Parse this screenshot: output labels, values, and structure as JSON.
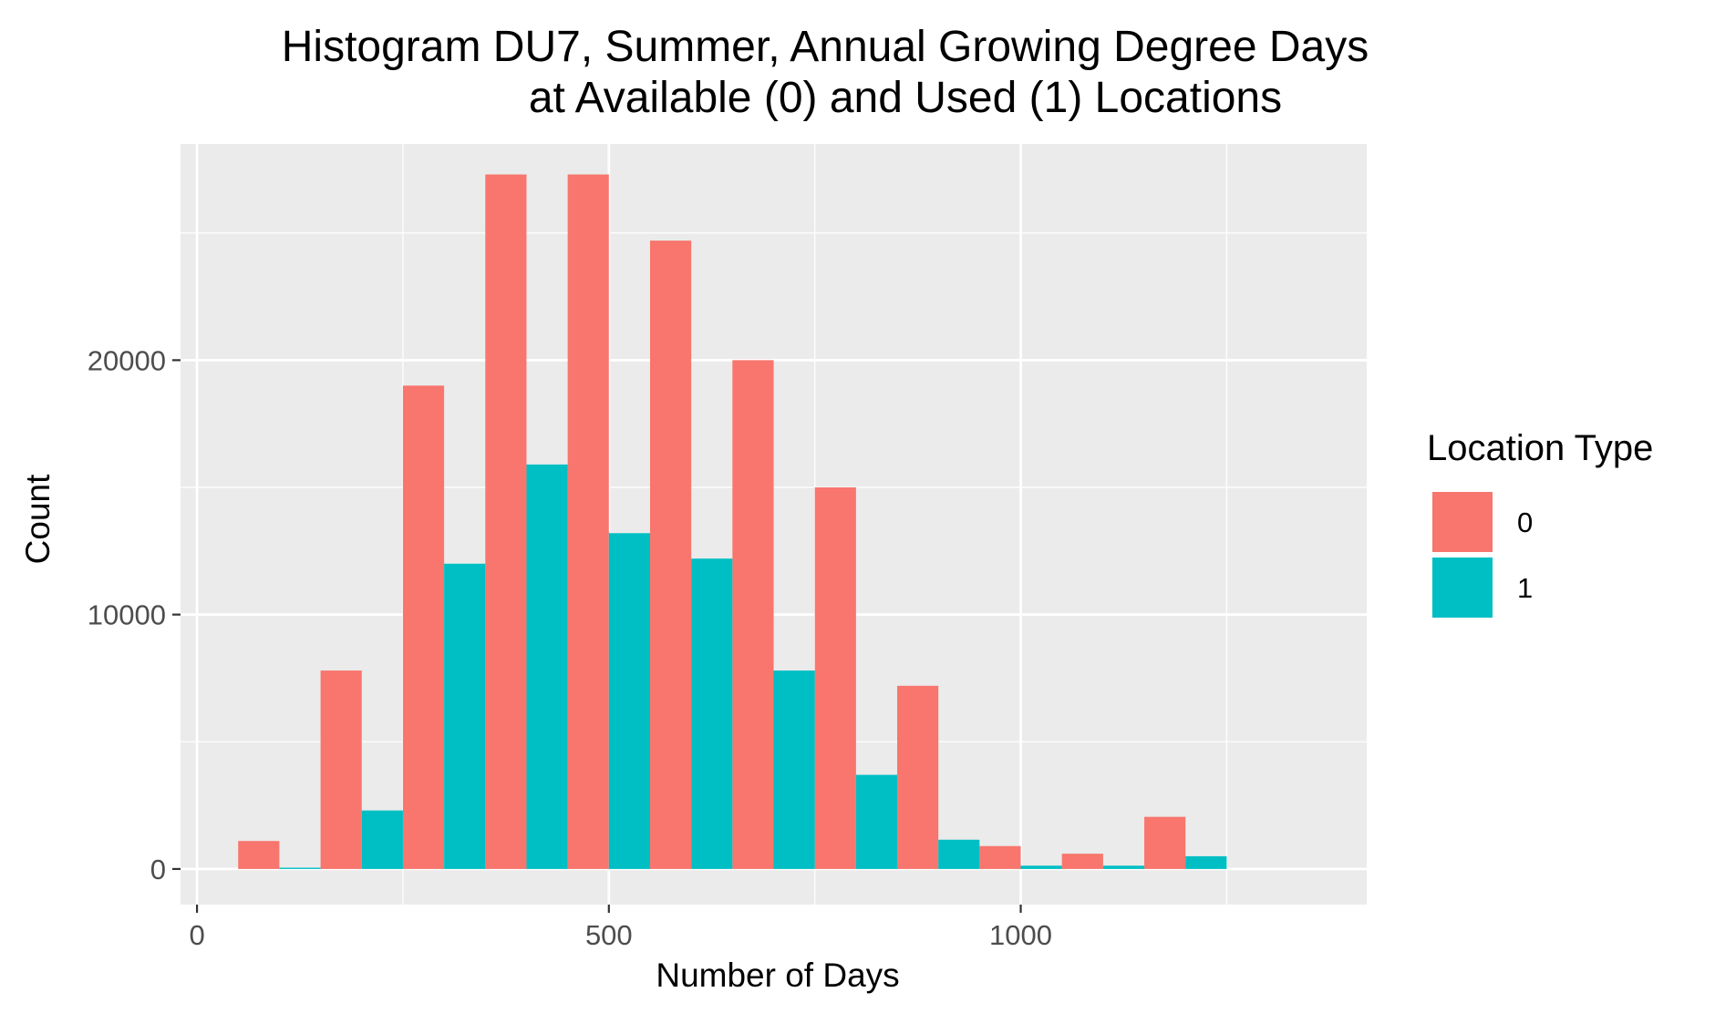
{
  "chart_data": {
    "type": "bar",
    "title_lines": [
      "Histogram DU7, Summer, Annual Growing Degree Days",
      "at Available (0) and Used (1) Locations"
    ],
    "xlabel": "Number of Days",
    "ylabel": "Count",
    "xlim": [
      -20,
      1420
    ],
    "ylim": [
      -1400,
      28500
    ],
    "x_ticks": [
      0,
      500,
      1000
    ],
    "x_tick_labels": [
      "0",
      "500",
      "1000"
    ],
    "y_ticks": [
      0,
      10000,
      20000
    ],
    "y_tick_labels": [
      "0",
      "10000",
      "20000"
    ],
    "x_minor_grid": [
      250,
      750,
      1250
    ],
    "y_minor_grid": [
      5000,
      15000,
      25000
    ],
    "grid": true,
    "bin_width": 100,
    "bin_starts": [
      50,
      150,
      250,
      350,
      450,
      550,
      650,
      750,
      850,
      950,
      1050,
      1150
    ],
    "series": [
      {
        "name": "0",
        "color": "#F8766D",
        "values": [
          1100,
          7800,
          19000,
          27300,
          27300,
          24700,
          20000,
          15000,
          7200,
          900,
          600,
          2050
        ]
      },
      {
        "name": "1",
        "color": "#00BFC4",
        "values": [
          50,
          2300,
          12000,
          15900,
          13200,
          12200,
          7800,
          3700,
          1150,
          130,
          130,
          500
        ]
      }
    ],
    "legend": {
      "title": "Location Type",
      "position": "right"
    },
    "panel_color": "#EBEBEB",
    "grid_color": "#FFFFFF"
  }
}
